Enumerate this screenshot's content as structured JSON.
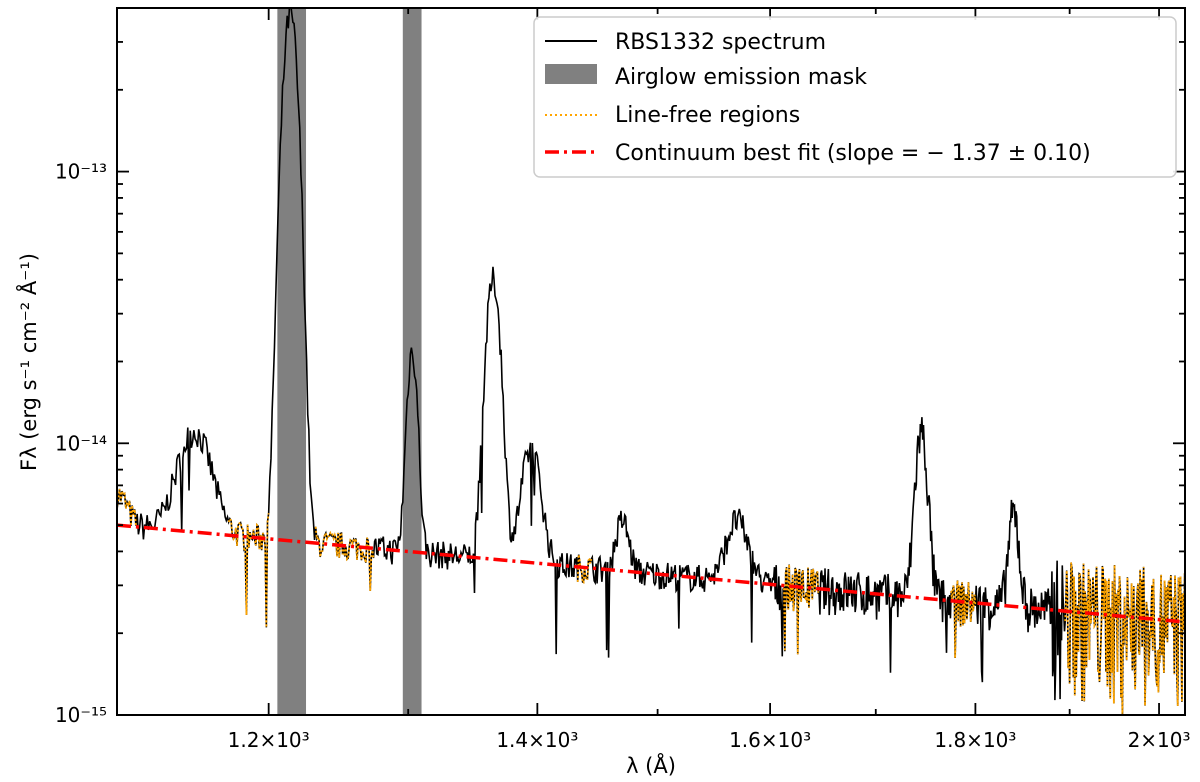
{
  "chart_data": {
    "type": "line",
    "title": "",
    "xlabel": "λ (Å)",
    "ylabel": "Fλ (erg s⁻¹ cm⁻² Å⁻¹)",
    "xscale": "log",
    "yscale": "log",
    "xlim": [
      1100,
      2030
    ],
    "ylim": [
      1e-15,
      4e-13
    ],
    "x_ticks": [
      {
        "value": 1200,
        "label": "1.2×10³"
      },
      {
        "value": 1400,
        "label": "1.4×10³"
      },
      {
        "value": 1600,
        "label": "1.6×10³"
      },
      {
        "value": 1800,
        "label": "1.8×10³"
      },
      {
        "value": 2000,
        "label": "2×10³"
      }
    ],
    "y_ticks": [
      {
        "value": 1e-15,
        "label": "10⁻¹⁵"
      },
      {
        "value": 1e-14,
        "label": "10⁻¹⁴"
      },
      {
        "value": 1e-13,
        "label": "10⁻¹³"
      }
    ],
    "grid": false,
    "legend_position": "top-right",
    "legend": [
      {
        "label": "RBS1332 spectrum",
        "style": "solid",
        "color": "#000000"
      },
      {
        "label": "Airglow emission mask",
        "style": "band",
        "color": "#808080"
      },
      {
        "label": "Line-free regions",
        "style": "dotted",
        "color": "#FFA500"
      },
      {
        "label": "Continuum best fit (slope = − 1.37 ± 0.10)",
        "style": "dashdot",
        "color": "#FF0000"
      }
    ],
    "mask_bands": [
      [
        1206,
        1226
      ],
      [
        1296,
        1310
      ]
    ],
    "continuum": {
      "slope": -1.37,
      "slope_err": 0.1,
      "at": [
        [
          1100,
          5e-15
        ],
        [
          2030,
          2.2e-15
        ]
      ]
    },
    "spectrum_peaks": [
      {
        "x": 1100,
        "y": 6.5e-15
      },
      {
        "x": 1150,
        "y": 1.1e-14
      },
      {
        "x": 1215,
        "y": 3.8e-13
      },
      {
        "x": 1303,
        "y": 2.2e-14
      },
      {
        "x": 1365,
        "y": 4e-14
      },
      {
        "x": 1395,
        "y": 9.5e-15
      },
      {
        "x": 1470,
        "y": 5.2e-15
      },
      {
        "x": 1570,
        "y": 5.2e-15
      },
      {
        "x": 1745,
        "y": 1.1e-14
      },
      {
        "x": 1840,
        "y": 5.5e-15
      }
    ],
    "line_free_regions": [
      [
        1100,
        1112
      ],
      [
        1172,
        1200
      ],
      [
        1232,
        1275
      ],
      [
        1432,
        1445
      ],
      [
        1612,
        1645
      ],
      [
        1775,
        1800
      ],
      [
        1895,
        2030
      ]
    ]
  }
}
